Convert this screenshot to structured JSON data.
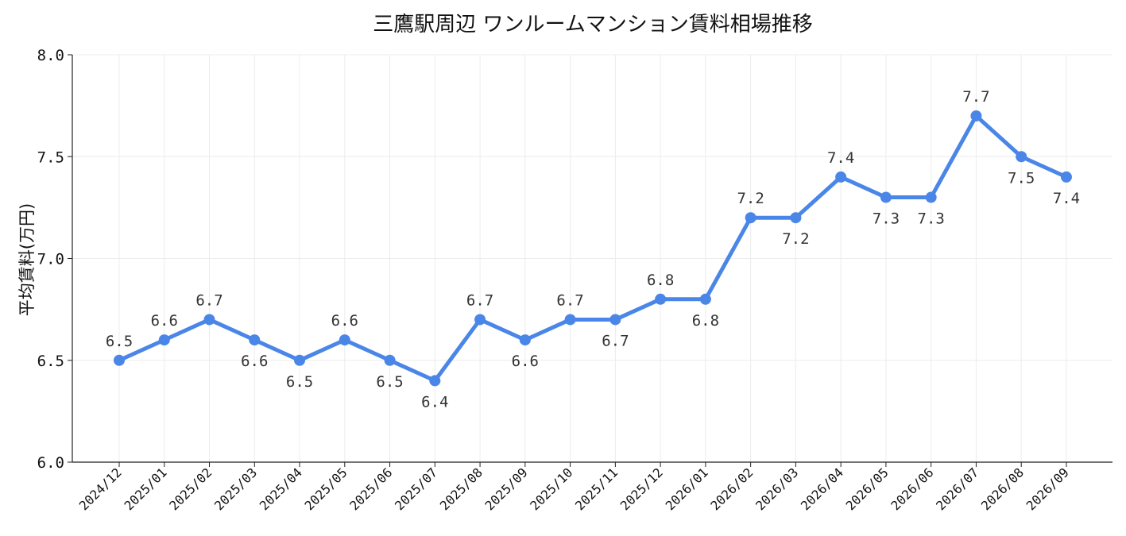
{
  "chart_data": {
    "type": "line",
    "title": "三鷹駅周辺 ワンルームマンション賃料相場推移",
    "xlabel": "",
    "ylabel": "平均賃料(万円)",
    "ylim": [
      6.0,
      8.0
    ],
    "yticks": [
      "6.0",
      "6.5",
      "7.0",
      "7.5",
      "8.0"
    ],
    "grid": true,
    "line_color": "#4a86e8",
    "categories": [
      "2024/12",
      "2025/01",
      "2025/02",
      "2025/03",
      "2025/04",
      "2025/05",
      "2025/06",
      "2025/07",
      "2025/08",
      "2025/09",
      "2025/10",
      "2025/11",
      "2025/12",
      "2026/01",
      "2026/02",
      "2026/03",
      "2026/04",
      "2026/05",
      "2026/06",
      "2026/07",
      "2026/08",
      "2026/09"
    ],
    "series": [
      {
        "values": [
          6.5,
          6.6,
          6.7,
          6.6,
          6.5,
          6.6,
          6.5,
          6.4,
          6.7,
          6.6,
          6.7,
          6.7,
          6.8,
          6.8,
          7.2,
          7.2,
          7.4,
          7.3,
          7.3,
          7.7,
          7.5,
          7.4
        ],
        "labels": [
          "6.5",
          "6.6",
          "6.7",
          "6.6",
          "6.5",
          "6.6",
          "6.5",
          "6.4",
          "6.7",
          "6.6",
          "6.7",
          "6.7",
          "6.8",
          "6.8",
          "7.2",
          "7.2",
          "7.4",
          "7.3",
          "7.3",
          "7.7",
          "7.5",
          "7.4"
        ]
      }
    ]
  }
}
